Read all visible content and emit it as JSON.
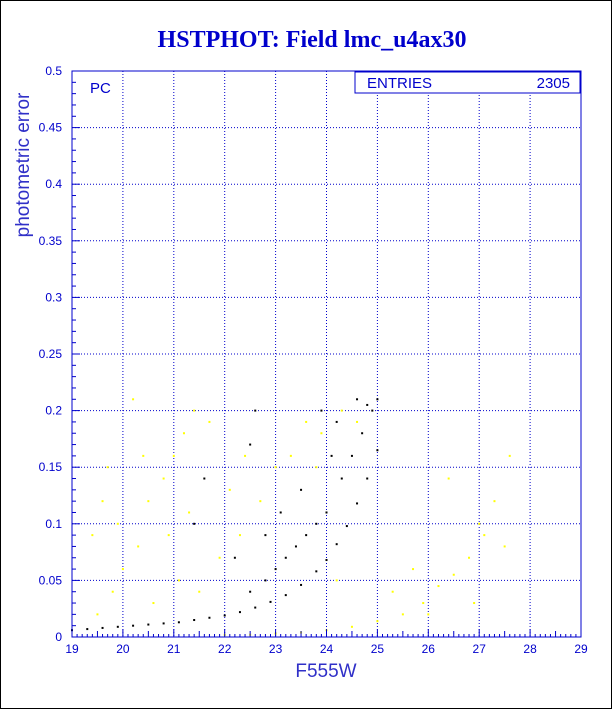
{
  "chart_data": {
    "type": "scatter",
    "title": "HSTPHOT: Field lmc_u4ax30",
    "xlabel": "F555W",
    "ylabel": "photometric error",
    "xlim": [
      19,
      29
    ],
    "ylim": [
      0,
      0.5
    ],
    "x_ticks": [
      "19",
      "20",
      "21",
      "22",
      "23",
      "24",
      "25",
      "26",
      "27",
      "28",
      "29"
    ],
    "y_ticks": [
      "0",
      "0.05",
      "0.1",
      "0.15",
      "0.2",
      "0.25",
      "0.3",
      "0.35",
      "0.4",
      "0.45",
      "0.5"
    ],
    "grid": true,
    "annotation": "PC",
    "stats": {
      "label": "ENTRIES",
      "value": "2305"
    },
    "colors": {
      "text": "#0000cc",
      "grid": "#0000cc",
      "black_points": "#000000",
      "yellow_points": "#ffff00"
    },
    "series": [
      {
        "color": "black",
        "points": [
          [
            19.0,
            0.006
          ],
          [
            19.3,
            0.007
          ],
          [
            19.6,
            0.008
          ],
          [
            19.9,
            0.009
          ],
          [
            20.2,
            0.01
          ],
          [
            20.5,
            0.011
          ],
          [
            20.8,
            0.012
          ],
          [
            21.1,
            0.013
          ],
          [
            21.4,
            0.015
          ],
          [
            21.7,
            0.017
          ],
          [
            22.0,
            0.019
          ],
          [
            22.3,
            0.022
          ],
          [
            22.6,
            0.026
          ],
          [
            22.9,
            0.031
          ],
          [
            23.2,
            0.037
          ],
          [
            23.5,
            0.046
          ],
          [
            23.8,
            0.058
          ],
          [
            24.0,
            0.068
          ],
          [
            24.2,
            0.082
          ],
          [
            24.4,
            0.098
          ],
          [
            24.6,
            0.118
          ],
          [
            24.8,
            0.14
          ],
          [
            25.0,
            0.165
          ],
          [
            22.5,
            0.04
          ],
          [
            22.8,
            0.05
          ],
          [
            23.0,
            0.06
          ],
          [
            23.2,
            0.07
          ],
          [
            23.4,
            0.08
          ],
          [
            23.6,
            0.09
          ],
          [
            23.8,
            0.1
          ],
          [
            24.0,
            0.11
          ],
          [
            24.3,
            0.14
          ],
          [
            24.5,
            0.16
          ],
          [
            24.7,
            0.18
          ],
          [
            24.9,
            0.2
          ],
          [
            24.6,
            0.21
          ],
          [
            24.2,
            0.19
          ],
          [
            23.9,
            0.2
          ],
          [
            22.6,
            0.2
          ],
          [
            22.5,
            0.17
          ],
          [
            21.6,
            0.14
          ],
          [
            21.4,
            0.1
          ],
          [
            22.2,
            0.07
          ],
          [
            23.5,
            0.13
          ],
          [
            23.1,
            0.11
          ],
          [
            22.8,
            0.09
          ],
          [
            24.1,
            0.16
          ],
          [
            24.8,
            0.205
          ],
          [
            25.0,
            0.21
          ]
        ]
      },
      {
        "color": "yellow",
        "points": [
          [
            22.0,
            0.002
          ],
          [
            22.5,
            0.002
          ],
          [
            23.0,
            0.003
          ],
          [
            23.5,
            0.004
          ],
          [
            24.0,
            0.006
          ],
          [
            24.5,
            0.009
          ],
          [
            25.0,
            0.014
          ],
          [
            25.5,
            0.02
          ],
          [
            25.9,
            0.03
          ],
          [
            26.2,
            0.045
          ],
          [
            26.5,
            0.055
          ],
          [
            26.8,
            0.07
          ],
          [
            27.1,
            0.09
          ],
          [
            27.6,
            0.16
          ],
          [
            19.5,
            0.02
          ],
          [
            19.8,
            0.04
          ],
          [
            20.0,
            0.06
          ],
          [
            20.3,
            0.08
          ],
          [
            20.5,
            0.12
          ],
          [
            20.8,
            0.14
          ],
          [
            21.0,
            0.16
          ],
          [
            21.2,
            0.18
          ],
          [
            21.4,
            0.2
          ],
          [
            20.2,
            0.21
          ],
          [
            19.6,
            0.12
          ],
          [
            19.4,
            0.09
          ],
          [
            20.6,
            0.03
          ],
          [
            21.1,
            0.05
          ],
          [
            21.5,
            0.04
          ],
          [
            21.9,
            0.07
          ],
          [
            22.3,
            0.09
          ],
          [
            22.7,
            0.12
          ],
          [
            23.0,
            0.15
          ],
          [
            23.3,
            0.16
          ],
          [
            23.6,
            0.19
          ],
          [
            23.9,
            0.18
          ],
          [
            24.3,
            0.2
          ],
          [
            24.6,
            0.19
          ],
          [
            23.8,
            0.15
          ],
          [
            22.1,
            0.13
          ],
          [
            22.4,
            0.16
          ],
          [
            21.7,
            0.19
          ],
          [
            20.4,
            0.16
          ],
          [
            19.7,
            0.15
          ],
          [
            19.9,
            0.1
          ],
          [
            20.9,
            0.09
          ],
          [
            21.3,
            0.11
          ],
          [
            26.0,
            0.02
          ],
          [
            26.9,
            0.03
          ],
          [
            27.3,
            0.12
          ],
          [
            27.5,
            0.08
          ],
          [
            26.4,
            0.14
          ],
          [
            27.0,
            0.1
          ],
          [
            25.7,
            0.06
          ],
          [
            24.2,
            0.05
          ],
          [
            25.3,
            0.04
          ]
        ]
      }
    ]
  }
}
